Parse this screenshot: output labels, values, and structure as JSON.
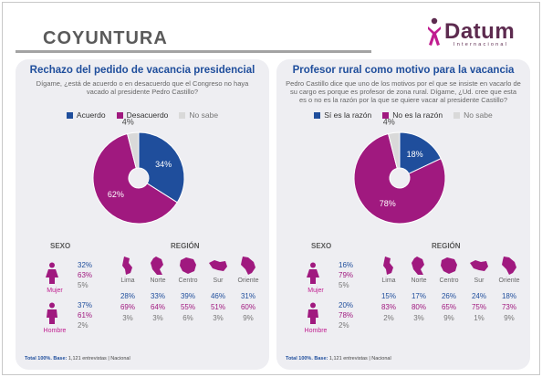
{
  "header": {
    "title": "COYUNTURA",
    "logo_word": "Datum",
    "logo_sub": "Internacional"
  },
  "colors": {
    "acuerdo": "#1f4e9c",
    "desacuerdo": "#a0197f",
    "no_sabe": "#d9d9d9"
  },
  "panels": [
    {
      "title": "Rechazo del pedido de vacancia presidencial",
      "question": "Dígame, ¿está de acuerdo o en desacuerdo que el Congreso no haya vacado al presidente Pedro Castillo?",
      "legend": [
        "Acuerdo",
        "Desacuerdo",
        "No sabe"
      ],
      "sexo_label": "SEXO",
      "region_label": "REGIÓN",
      "mujer_label": "Mujer",
      "hombre_label": "Hombre",
      "mujer": [
        "32%",
        "63%",
        "5%"
      ],
      "hombre": [
        "37%",
        "61%",
        "2%"
      ],
      "regions": [
        {
          "name": "Lima",
          "vals": [
            "28%",
            "69%",
            "3%"
          ]
        },
        {
          "name": "Norte",
          "vals": [
            "33%",
            "64%",
            "3%"
          ]
        },
        {
          "name": "Centro",
          "vals": [
            "39%",
            "55%",
            "6%"
          ]
        },
        {
          "name": "Sur",
          "vals": [
            "46%",
            "51%",
            "3%"
          ]
        },
        {
          "name": "Oriente",
          "vals": [
            "31%",
            "60%",
            "9%"
          ]
        }
      ],
      "footer_bold": "Total 100%. Base:",
      "footer_rest": " 1,121 entrevistas  |  Nacional"
    },
    {
      "title": "Profesor rural como motivo para la vacancia",
      "question": "Pedro Castillo dice que uno de los motivos por el que se insiste en vacarlo de su cargo es porque es profesor de zona rural. Dígame, ¿Ud. cree que esta es o no es la razón por la que se quiere vacar al presidente Castillo?",
      "legend": [
        "Sí es la razón",
        "No es la razón",
        "No sabe"
      ],
      "sexo_label": "SEXO",
      "region_label": "REGIÓN",
      "mujer_label": "Mujer",
      "hombre_label": "Hombre",
      "mujer": [
        "16%",
        "79%",
        "5%"
      ],
      "hombre": [
        "20%",
        "78%",
        "2%"
      ],
      "regions": [
        {
          "name": "Lima",
          "vals": [
            "15%",
            "83%",
            "2%"
          ]
        },
        {
          "name": "Norte",
          "vals": [
            "17%",
            "80%",
            "3%"
          ]
        },
        {
          "name": "Centro",
          "vals": [
            "26%",
            "65%",
            "9%"
          ]
        },
        {
          "name": "Sur",
          "vals": [
            "24%",
            "75%",
            "1%"
          ]
        },
        {
          "name": "Oriente",
          "vals": [
            "18%",
            "73%",
            "9%"
          ]
        }
      ],
      "footer_bold": "Total 100%. Base:",
      "footer_rest": " 1,121 entrevistas  |  Nacional"
    }
  ],
  "chart_data": [
    {
      "type": "pie",
      "title": "Rechazo del pedido de vacancia presidencial",
      "categories": [
        "Acuerdo",
        "Desacuerdo",
        "No sabe"
      ],
      "values": [
        34,
        62,
        4
      ],
      "labels": [
        "34%",
        "62%",
        "4%"
      ]
    },
    {
      "type": "pie",
      "title": "Profesor rural como motivo para la vacancia",
      "categories": [
        "Sí es la razón",
        "No es la razón",
        "No sabe"
      ],
      "values": [
        18,
        78,
        4
      ],
      "labels": [
        "18%",
        "78%",
        "4%"
      ]
    }
  ]
}
